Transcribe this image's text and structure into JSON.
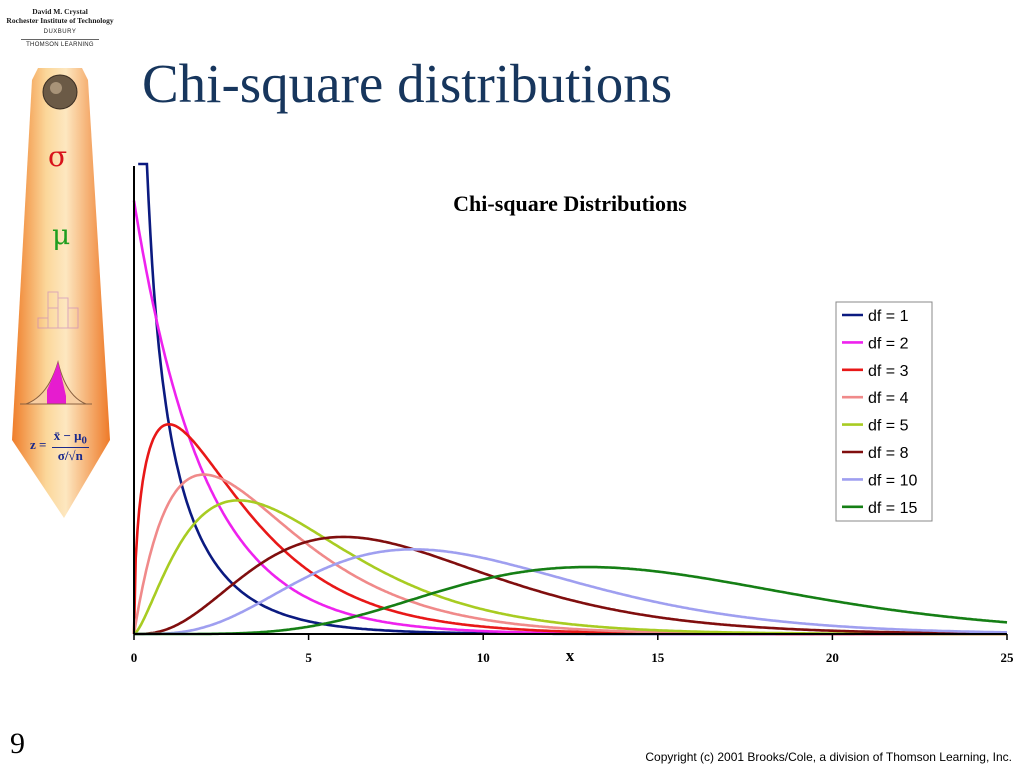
{
  "slide": {
    "title": "Chi-square distributions",
    "number": "9",
    "copyright": "Copyright (c) 2001 Brooks/Cole, a division of Thomson Learning, Inc."
  },
  "branding": {
    "author": "David M. Crystal",
    "institution": "Rochester Institute of Technology",
    "publisher": "DUXBURY",
    "company": "THOMSON LEARNING"
  },
  "decor": {
    "sigma": "σ",
    "mu": "μ",
    "formula_lhs": "z =",
    "formula_numerator": "x̄ − μ",
    "formula_numerator_sub": "0",
    "formula_denominator": "σ/√n"
  },
  "colors": {
    "title": "#17365d",
    "tie_fill": "#f6b26b",
    "sigma": "#d8131b",
    "mu": "#1f9e1f"
  },
  "chart_data": {
    "type": "line",
    "title": "Chi-square Distributions",
    "xlabel": "x",
    "ylabel": "",
    "xlim": [
      0,
      25
    ],
    "ylim": [
      0,
      0.54
    ],
    "x_ticks": [
      0,
      5,
      10,
      15,
      20,
      25
    ],
    "grid": false,
    "legend_position": "right",
    "series": [
      {
        "name": "df = 1",
        "df": 1,
        "color": "#0b1a80"
      },
      {
        "name": "df = 2",
        "df": 2,
        "color": "#ee22ee"
      },
      {
        "name": "df = 3",
        "df": 3,
        "color": "#e81818"
      },
      {
        "name": "df = 4",
        "df": 4,
        "color": "#f08a8a"
      },
      {
        "name": "df = 5",
        "df": 5,
        "color": "#a8cc22"
      },
      {
        "name": "df = 8",
        "df": 8,
        "color": "#800e0e"
      },
      {
        "name": "df = 10",
        "df": 10,
        "color": "#9f9ff0"
      },
      {
        "name": "df = 15",
        "df": 15,
        "color": "#157f15"
      }
    ]
  }
}
